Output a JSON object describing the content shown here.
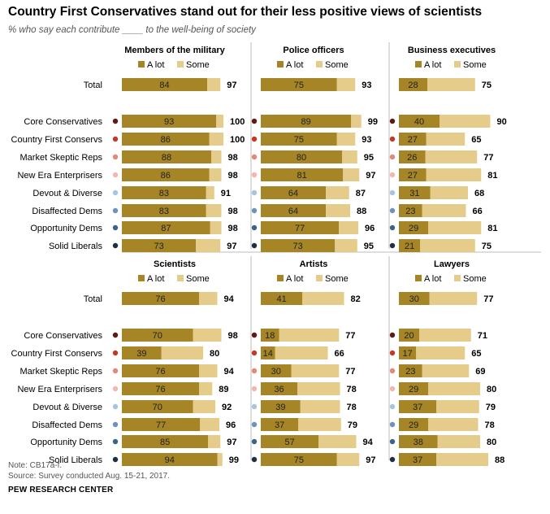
{
  "title": "Country First Conservatives stand out for their less positive views of scientists",
  "subtitle": "% who say each contribute ____ to the well-being of society",
  "note": "Note: CB17a-f.",
  "source": "Source: Survey conducted Aug. 15-21, 2017.",
  "org": "PEW RESEARCH CENTER",
  "colors": {
    "a_lot": "#a68526",
    "some": "#e6cc8a",
    "divider": "#bdbdbd"
  },
  "chart_data": {
    "type": "bar",
    "stacked": true,
    "legend_labels": [
      "A lot",
      "Some"
    ],
    "categories": [
      "Total",
      "Core Conservatives",
      "Country First Conservs",
      "Market Skeptic Reps",
      "New Era Enterprisers",
      "Devout & Diverse",
      "Disaffected Dems",
      "Opportunity Dems",
      "Solid Liberals"
    ],
    "dot_colors": [
      "#ffffff",
      "#5e1a14",
      "#c0392b",
      "#e08a7d",
      "#f0b8b0",
      "#a9c5de",
      "#6f93b8",
      "#3f6387",
      "#1f2e40"
    ],
    "panels": [
      {
        "title": "Members of the military",
        "a_lot": [
          84,
          93,
          86,
          88,
          86,
          83,
          83,
          87,
          73
        ],
        "total": [
          97,
          100,
          100,
          98,
          98,
          91,
          98,
          98,
          97
        ]
      },
      {
        "title": "Police officers",
        "a_lot": [
          75,
          89,
          75,
          80,
          81,
          64,
          64,
          77,
          73
        ],
        "total": [
          93,
          99,
          93,
          95,
          97,
          87,
          88,
          96,
          95
        ]
      },
      {
        "title": "Business executives",
        "a_lot": [
          28,
          40,
          27,
          26,
          27,
          31,
          23,
          29,
          21
        ],
        "total": [
          75,
          90,
          65,
          77,
          81,
          68,
          66,
          81,
          75
        ]
      },
      {
        "title": "Scientists",
        "a_lot": [
          76,
          70,
          39,
          76,
          76,
          70,
          77,
          85,
          94
        ],
        "total": [
          94,
          98,
          80,
          94,
          89,
          92,
          96,
          97,
          99
        ]
      },
      {
        "title": "Artists",
        "a_lot": [
          41,
          18,
          14,
          30,
          36,
          39,
          37,
          57,
          75
        ],
        "total": [
          82,
          77,
          66,
          77,
          78,
          78,
          79,
          94,
          97
        ]
      },
      {
        "title": "Lawyers",
        "a_lot": [
          30,
          20,
          17,
          23,
          29,
          37,
          29,
          38,
          37
        ],
        "total": [
          77,
          71,
          65,
          69,
          80,
          79,
          78,
          80,
          88
        ]
      }
    ]
  }
}
